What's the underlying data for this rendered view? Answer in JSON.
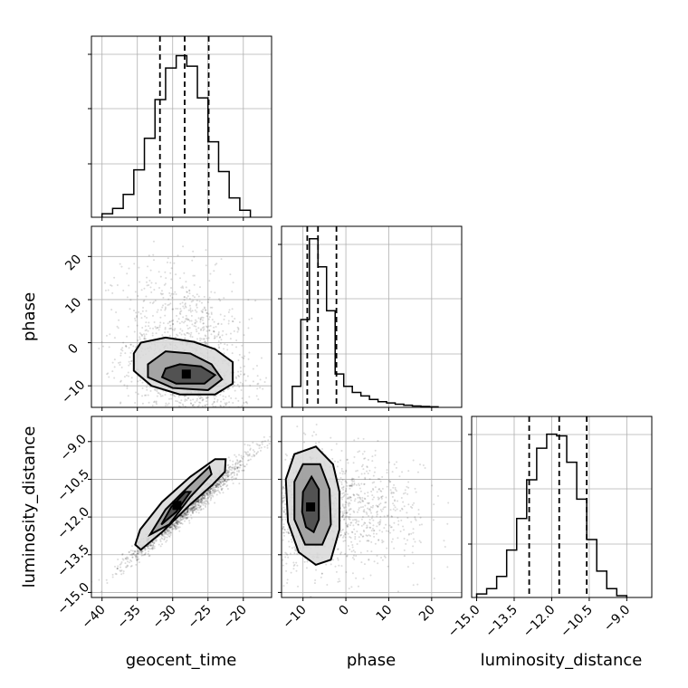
{
  "chart_data": {
    "type": "corner",
    "parameters": [
      "geocent_time",
      "phase",
      "luminosity_distance"
    ],
    "labels": {
      "geocent_time": "geocent_time",
      "phase": "phase",
      "luminosity_distance": "luminosity_distance"
    },
    "axes": {
      "geocent_time": {
        "range": [
          -41.5,
          -16
        ],
        "ticks": [
          -40,
          -35,
          -30,
          -25,
          -20
        ]
      },
      "phase": {
        "range": [
          -15,
          27
        ],
        "ticks": [
          -10,
          0,
          10,
          20
        ]
      },
      "luminosity_distance": {
        "range": [
          -15.2,
          -8.0
        ],
        "ticks": [
          -15.0,
          -13.5,
          -12.0,
          -10.5,
          -9.0
        ]
      }
    },
    "grid": true,
    "histograms": {
      "geocent_time": {
        "bin_edges": [
          -40,
          -38.5,
          -37,
          -35.5,
          -34,
          -32.5,
          -31,
          -29.5,
          -28,
          -26.5,
          -25,
          -23.5,
          -22,
          -20.5,
          -19
        ],
        "counts": [
          0.02,
          0.05,
          0.13,
          0.27,
          0.45,
          0.67,
          0.85,
          0.92,
          0.86,
          0.68,
          0.43,
          0.26,
          0.11,
          0.04
        ],
        "quantiles": [
          -31.8,
          -28.3,
          -24.9
        ]
      },
      "phase": {
        "bin_edges": [
          -12.5,
          -10.5,
          -8.5,
          -6.5,
          -4.5,
          -2.5,
          -0.5,
          1.5,
          3.5,
          5.5,
          7.5,
          9.5,
          11.5,
          13.5,
          15.5,
          17.5,
          19.5,
          21.5
        ],
        "counts": [
          0.12,
          0.5,
          0.96,
          0.8,
          0.55,
          0.19,
          0.12,
          0.085,
          0.065,
          0.045,
          0.032,
          0.025,
          0.018,
          0.012,
          0.008,
          0.005,
          0.003
        ],
        "quantiles": [
          -9.0,
          -6.5,
          -2.2
        ]
      },
      "luminosity_distance": {
        "bin_edges": [
          -15.0,
          -14.6,
          -14.2,
          -13.8,
          -13.4,
          -13.0,
          -12.6,
          -12.2,
          -11.8,
          -11.4,
          -11.0,
          -10.6,
          -10.2,
          -9.8,
          -9.4,
          -9.0
        ],
        "counts": [
          0.02,
          0.05,
          0.12,
          0.27,
          0.45,
          0.67,
          0.85,
          0.93,
          0.92,
          0.77,
          0.56,
          0.33,
          0.15,
          0.05,
          0.01
        ],
        "quantiles": [
          -12.9,
          -11.7,
          -10.6
        ]
      }
    },
    "scatter_2d": {
      "geocent_time_vs_phase": {
        "x_center": -28,
        "x_spread": 4.5,
        "y_center": -6,
        "y_spread": 6,
        "skew_y": 1,
        "correlation": -0.25
      },
      "geocent_time_vs_luminosity_distance": {
        "x_center": -28,
        "x_spread": 4.5,
        "y_center": -11.7,
        "y_spread": 1.1,
        "correlation": 0.98
      },
      "phase_vs_luminosity_distance": {
        "x_center": -6,
        "x_spread": 6,
        "y_center": -11.7,
        "y_spread": 1.1,
        "skew_x": 1,
        "correlation": 0.0
      }
    },
    "contours_2d": {
      "geocent_time_vs_phase": [
        [
          [
            -35.5,
            -2.5
          ],
          [
            -34.5,
            0
          ],
          [
            -31,
            1.2
          ],
          [
            -27,
            0.2
          ],
          [
            -24,
            -1.5
          ],
          [
            -21.5,
            -4.5
          ],
          [
            -21.5,
            -9.5
          ],
          [
            -24,
            -12
          ],
          [
            -29,
            -12
          ],
          [
            -33,
            -10
          ],
          [
            -35.5,
            -6.5
          ]
        ],
        [
          [
            -33.5,
            -5
          ],
          [
            -31,
            -2
          ],
          [
            -27.5,
            -2.5
          ],
          [
            -24.5,
            -5
          ],
          [
            -23,
            -8.5
          ],
          [
            -25,
            -11
          ],
          [
            -30,
            -10.5
          ],
          [
            -33.5,
            -8
          ]
        ],
        [
          [
            -31,
            -6
          ],
          [
            -29,
            -5
          ],
          [
            -26,
            -5.5
          ],
          [
            -24,
            -7.5
          ],
          [
            -25.5,
            -9.5
          ],
          [
            -29.5,
            -9.5
          ],
          [
            -31.5,
            -8
          ]
        ]
      ],
      "geocent_time_vs_luminosity_distance": [
        [
          [
            -35.3,
            -13.1
          ],
          [
            -34.5,
            -13.3
          ],
          [
            -31.5,
            -12.6
          ],
          [
            -27.5,
            -11.5
          ],
          [
            -24.3,
            -10.7
          ],
          [
            -22.6,
            -10.2
          ],
          [
            -22.5,
            -9.7
          ],
          [
            -24,
            -9.7
          ],
          [
            -27.5,
            -10.4
          ],
          [
            -31.5,
            -11.4
          ],
          [
            -34.6,
            -12.5
          ]
        ],
        [
          [
            -33.2,
            -12.7
          ],
          [
            -30.5,
            -12.3
          ],
          [
            -27.5,
            -11.2
          ],
          [
            -24.5,
            -10.3
          ],
          [
            -24.8,
            -10.0
          ],
          [
            -27.8,
            -10.8
          ],
          [
            -31,
            -11.7
          ]
        ],
        [
          [
            -31.6,
            -12.3
          ],
          [
            -29.5,
            -11.8
          ],
          [
            -27.5,
            -11.0
          ],
          [
            -28.2,
            -11.0
          ],
          [
            -30.2,
            -11.6
          ]
        ]
      ],
      "phase_vs_luminosity_distance": [
        [
          [
            -14,
            -10.5
          ],
          [
            -12,
            -9.5
          ],
          [
            -7,
            -9.2
          ],
          [
            -3,
            -9.9
          ],
          [
            -1.5,
            -11
          ],
          [
            -1.5,
            -12.5
          ],
          [
            -3.5,
            -13.7
          ],
          [
            -7,
            -13.9
          ],
          [
            -11,
            -13.4
          ],
          [
            -13.5,
            -12.2
          ]
        ],
        [
          [
            -12,
            -10.6
          ],
          [
            -10,
            -9.9
          ],
          [
            -6,
            -9.9
          ],
          [
            -3.8,
            -10.9
          ],
          [
            -3.5,
            -12.3
          ],
          [
            -5.5,
            -13.1
          ],
          [
            -9.5,
            -13.1
          ],
          [
            -12,
            -12.1
          ]
        ],
        [
          [
            -10,
            -11.0
          ],
          [
            -8,
            -10.4
          ],
          [
            -6.3,
            -10.9
          ],
          [
            -6.3,
            -12.1
          ],
          [
            -7.5,
            -12.6
          ],
          [
            -9.3,
            -12.4
          ],
          [
            -10.2,
            -11.8
          ]
        ]
      ]
    }
  }
}
